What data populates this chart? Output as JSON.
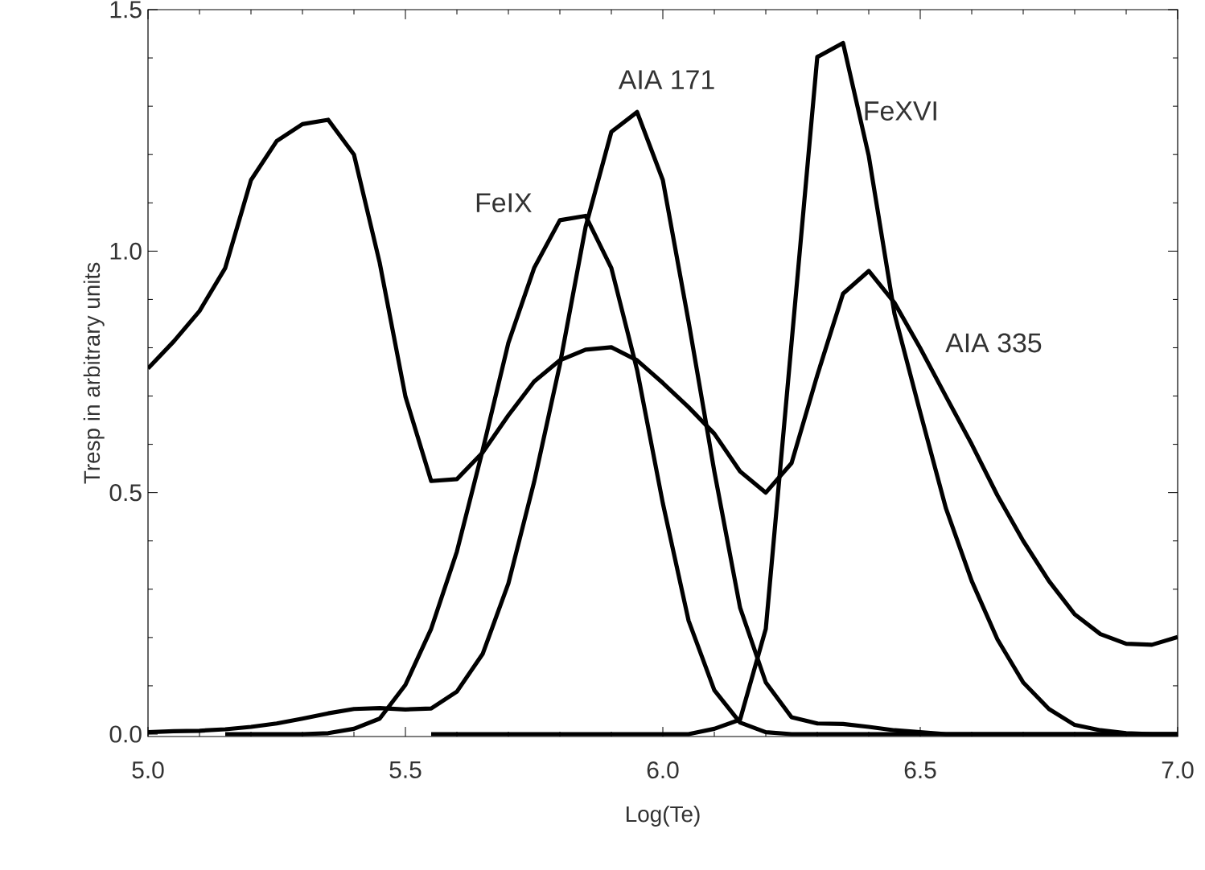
{
  "chart_data": {
    "type": "line",
    "xlabel": "Log(Te)",
    "ylabel": "Tresp in arbitrary units",
    "xlim": [
      5.0,
      7.0
    ],
    "ylim": [
      -0.005,
      1.5
    ],
    "xticks": [
      {
        "value": 5.0,
        "label": "5.0"
      },
      {
        "value": 5.5,
        "label": "5.5"
      },
      {
        "value": 6.0,
        "label": "6.0"
      },
      {
        "value": 6.5,
        "label": "6.5"
      },
      {
        "value": 7.0,
        "label": "7.0"
      }
    ],
    "yticks": [
      {
        "value": 0,
        "label": "0.0"
      },
      {
        "value": 0.5,
        "label": "0.5"
      },
      {
        "value": 1.0,
        "label": "1.0"
      },
      {
        "value": 1.5,
        "label": "1.5"
      }
    ],
    "grid": false,
    "legend": false,
    "marker": "none",
    "line_style": "solid",
    "series": [
      {
        "name": "AIA 335",
        "color": "#000000",
        "x": [
          5.0,
          5.05,
          5.1,
          5.15,
          5.2,
          5.25,
          5.3,
          5.35,
          5.4,
          5.45,
          5.5,
          5.55,
          5.6,
          5.65,
          5.7,
          5.75,
          5.8,
          5.85,
          5.9,
          5.95,
          6.0,
          6.05,
          6.1,
          6.15,
          6.2,
          6.25,
          6.3,
          6.35,
          6.4,
          6.45,
          6.5,
          6.55,
          6.6,
          6.65,
          6.7,
          6.75,
          6.8,
          6.85,
          6.9,
          6.95,
          7.0
        ],
        "values": [
          0.757,
          0.813,
          0.876,
          0.965,
          1.147,
          1.228,
          1.263,
          1.272,
          1.2,
          0.976,
          0.699,
          0.524,
          0.528,
          0.583,
          0.66,
          0.73,
          0.774,
          0.796,
          0.801,
          0.774,
          0.727,
          0.677,
          0.622,
          0.544,
          0.5,
          0.561,
          0.743,
          0.912,
          0.959,
          0.893,
          0.799,
          0.699,
          0.6,
          0.494,
          0.4,
          0.317,
          0.248,
          0.207,
          0.187,
          0.185,
          0.201
        ]
      },
      {
        "name": "FeIX",
        "color": "#000000",
        "x": [
          5.15,
          5.2,
          5.25,
          5.3,
          5.35,
          5.4,
          5.45,
          5.5,
          5.55,
          5.6,
          5.65,
          5.7,
          5.75,
          5.8,
          5.85,
          5.9,
          5.95,
          6.0,
          6.05,
          6.1,
          6.15,
          6.2,
          6.25,
          6.3,
          6.35,
          6.4,
          6.45,
          6.5,
          6.55,
          6.6,
          6.65,
          6.7,
          6.75,
          6.8,
          6.85,
          6.9,
          6.95,
          7.0
        ],
        "values": [
          0,
          0,
          0,
          0,
          0.002,
          0.011,
          0.032,
          0.102,
          0.218,
          0.378,
          0.588,
          0.81,
          0.965,
          1.064,
          1.073,
          0.965,
          0.754,
          0.478,
          0.235,
          0.091,
          0.024,
          0.004,
          0,
          0,
          0,
          0,
          0,
          0,
          0,
          0,
          0,
          0,
          0,
          0,
          0,
          0,
          0,
          0
        ]
      },
      {
        "name": "AIA 171",
        "color": "#000000",
        "x": [
          5.0,
          5.05,
          5.1,
          5.15,
          5.2,
          5.25,
          5.3,
          5.35,
          5.4,
          5.45,
          5.5,
          5.55,
          5.6,
          5.65,
          5.7,
          5.75,
          5.8,
          5.85,
          5.9,
          5.95,
          6.0,
          6.05,
          6.1,
          6.15,
          6.2,
          6.25,
          6.3,
          6.35,
          6.4,
          6.45,
          6.5,
          6.55,
          6.6,
          6.65,
          6.7,
          6.75,
          6.8,
          6.85,
          6.9,
          6.95,
          7.0
        ],
        "values": [
          0.004,
          0.006,
          0.007,
          0.01,
          0.015,
          0.022,
          0.032,
          0.043,
          0.052,
          0.054,
          0.051,
          0.053,
          0.088,
          0.166,
          0.312,
          0.522,
          0.765,
          1.05,
          1.247,
          1.288,
          1.147,
          0.854,
          0.544,
          0.262,
          0.107,
          0.035,
          0.022,
          0.021,
          0.015,
          0.008,
          0.004,
          0,
          0,
          0,
          0,
          0,
          0,
          0,
          0,
          0,
          0
        ]
      },
      {
        "name": "FeXVI",
        "color": "#000000",
        "x": [
          5.55,
          5.6,
          5.65,
          5.7,
          5.75,
          5.8,
          5.85,
          5.9,
          5.95,
          6.0,
          6.05,
          6.1,
          6.15,
          6.2,
          6.25,
          6.3,
          6.35,
          6.4,
          6.45,
          6.5,
          6.55,
          6.6,
          6.65,
          6.7,
          6.75,
          6.8,
          6.85,
          6.9,
          6.95,
          7.0
        ],
        "values": [
          0,
          0,
          0,
          0,
          0,
          0,
          0,
          0,
          0,
          0,
          0,
          0.011,
          0.03,
          0.218,
          0.81,
          1.402,
          1.431,
          1.197,
          0.87,
          0.666,
          0.467,
          0.317,
          0.196,
          0.107,
          0.052,
          0.019,
          0.008,
          0.002,
          0,
          0
        ]
      }
    ]
  }
}
